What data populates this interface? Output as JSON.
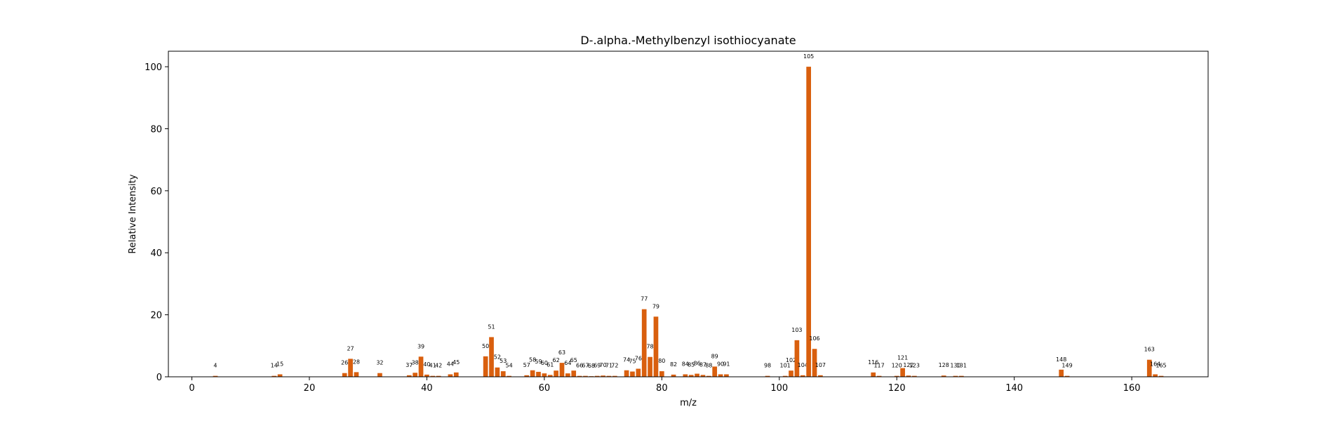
{
  "chart_data": {
    "type": "bar",
    "title": "D-.alpha.-Methylbenzyl isothiocyanate",
    "xlabel": "m/z",
    "ylabel": "Relative Intensity",
    "xlim": [
      -4,
      173
    ],
    "ylim": [
      0,
      105
    ],
    "xticks": [
      0,
      20,
      40,
      60,
      80,
      100,
      120,
      140,
      160
    ],
    "yticks": [
      0,
      20,
      40,
      60,
      80,
      100
    ],
    "grid": false,
    "bar_color": "#d95f0e",
    "peaks": [
      {
        "mz": 4,
        "intensity": 0.3
      },
      {
        "mz": 14,
        "intensity": 0.3
      },
      {
        "mz": 15,
        "intensity": 0.8
      },
      {
        "mz": 26,
        "intensity": 1.2
      },
      {
        "mz": 27,
        "intensity": 5.8
      },
      {
        "mz": 28,
        "intensity": 1.5
      },
      {
        "mz": 32,
        "intensity": 1.2
      },
      {
        "mz": 37,
        "intensity": 0.5
      },
      {
        "mz": 38,
        "intensity": 1.3
      },
      {
        "mz": 39,
        "intensity": 6.5
      },
      {
        "mz": 40,
        "intensity": 0.7
      },
      {
        "mz": 41,
        "intensity": 0.3
      },
      {
        "mz": 42,
        "intensity": 0.3
      },
      {
        "mz": 44,
        "intensity": 0.8
      },
      {
        "mz": 45,
        "intensity": 1.4
      },
      {
        "mz": 50,
        "intensity": 6.6
      },
      {
        "mz": 51,
        "intensity": 12.8
      },
      {
        "mz": 52,
        "intensity": 3.0
      },
      {
        "mz": 53,
        "intensity": 1.8
      },
      {
        "mz": 54,
        "intensity": 0.3
      },
      {
        "mz": 57,
        "intensity": 0.5
      },
      {
        "mz": 58,
        "intensity": 2.1
      },
      {
        "mz": 59,
        "intensity": 1.6
      },
      {
        "mz": 60,
        "intensity": 1.1
      },
      {
        "mz": 61,
        "intensity": 0.6
      },
      {
        "mz": 62,
        "intensity": 2.0
      },
      {
        "mz": 63,
        "intensity": 4.5
      },
      {
        "mz": 64,
        "intensity": 1.1
      },
      {
        "mz": 65,
        "intensity": 2.0
      },
      {
        "mz": 66,
        "intensity": 0.3
      },
      {
        "mz": 67,
        "intensity": 0.3
      },
      {
        "mz": 68,
        "intensity": 0.2
      },
      {
        "mz": 69,
        "intensity": 0.3
      },
      {
        "mz": 70,
        "intensity": 0.4
      },
      {
        "mz": 71,
        "intensity": 0.3
      },
      {
        "mz": 72,
        "intensity": 0.3
      },
      {
        "mz": 74,
        "intensity": 2.1
      },
      {
        "mz": 75,
        "intensity": 1.7
      },
      {
        "mz": 76,
        "intensity": 2.6
      },
      {
        "mz": 77,
        "intensity": 21.8
      },
      {
        "mz": 78,
        "intensity": 6.4
      },
      {
        "mz": 79,
        "intensity": 19.4
      },
      {
        "mz": 80,
        "intensity": 1.8
      },
      {
        "mz": 82,
        "intensity": 0.7
      },
      {
        "mz": 84,
        "intensity": 0.8
      },
      {
        "mz": 85,
        "intensity": 0.6
      },
      {
        "mz": 86,
        "intensity": 1.0
      },
      {
        "mz": 87,
        "intensity": 0.6
      },
      {
        "mz": 88,
        "intensity": 0.3
      },
      {
        "mz": 89,
        "intensity": 3.3
      },
      {
        "mz": 90,
        "intensity": 0.8
      },
      {
        "mz": 91,
        "intensity": 0.8
      },
      {
        "mz": 98,
        "intensity": 0.3
      },
      {
        "mz": 101,
        "intensity": 0.3
      },
      {
        "mz": 102,
        "intensity": 2.0
      },
      {
        "mz": 103,
        "intensity": 11.8
      },
      {
        "mz": 104,
        "intensity": 0.5
      },
      {
        "mz": 105,
        "intensity": 100
      },
      {
        "mz": 106,
        "intensity": 9.0
      },
      {
        "mz": 107,
        "intensity": 0.5
      },
      {
        "mz": 116,
        "intensity": 1.4
      },
      {
        "mz": 117,
        "intensity": 0.3
      },
      {
        "mz": 120,
        "intensity": 0.3
      },
      {
        "mz": 121,
        "intensity": 2.8
      },
      {
        "mz": 122,
        "intensity": 0.4
      },
      {
        "mz": 123,
        "intensity": 0.3
      },
      {
        "mz": 128,
        "intensity": 0.4
      },
      {
        "mz": 130,
        "intensity": 0.3
      },
      {
        "mz": 131,
        "intensity": 0.3
      },
      {
        "mz": 148,
        "intensity": 2.3
      },
      {
        "mz": 149,
        "intensity": 0.3
      },
      {
        "mz": 163,
        "intensity": 5.5
      },
      {
        "mz": 164,
        "intensity": 0.8
      },
      {
        "mz": 165,
        "intensity": 0.3
      }
    ]
  }
}
